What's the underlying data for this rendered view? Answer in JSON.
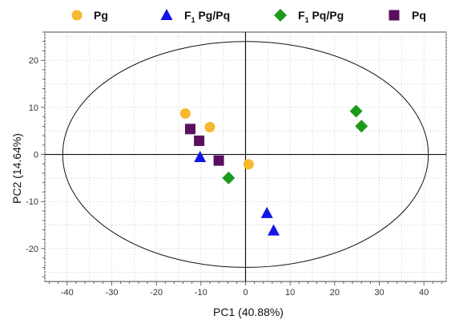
{
  "chart_data": {
    "type": "scatter",
    "xlabel": "PC1 (40.88%)",
    "ylabel": "PC2 (14.64%)",
    "xlim": [
      -45,
      45
    ],
    "ylim": [
      -27,
      26
    ],
    "xticks": [
      -40,
      -30,
      -20,
      -10,
      0,
      10,
      20,
      30,
      40
    ],
    "yticks": [
      -20,
      -10,
      0,
      10,
      20
    ],
    "grid": true,
    "legend_position": "top",
    "ellipse": {
      "center": [
        0,
        0
      ],
      "semi_x": 41,
      "semi_y": 24
    },
    "series": [
      {
        "name": "Pg",
        "marker": "circle",
        "color": "#F5B82E",
        "points": [
          [
            -13.5,
            8.7
          ],
          [
            -8,
            5.8
          ],
          [
            0.7,
            -2.1
          ]
        ]
      },
      {
        "name": "F1 Pg/Pq",
        "name_main": "F",
        "name_sub": "1",
        "name_rest": " Pg/Pq",
        "marker": "triangle",
        "color": "#1414E6",
        "points": [
          [
            -10.2,
            -0.6
          ],
          [
            4.8,
            -12.5
          ],
          [
            6.3,
            -16.2
          ]
        ]
      },
      {
        "name": "F1 Pq/Pg",
        "name_main": "F",
        "name_sub": "1",
        "name_rest": " Pq/Pg",
        "marker": "diamond",
        "color": "#1E9A1E",
        "points": [
          [
            -3.8,
            -5
          ],
          [
            24.8,
            9.2
          ],
          [
            26,
            6
          ]
        ]
      },
      {
        "name": "Pq",
        "marker": "square",
        "color": "#5A0F5F",
        "points": [
          [
            -12.4,
            5.4
          ],
          [
            -10.4,
            2.9
          ],
          [
            -6,
            -1.3
          ]
        ]
      }
    ]
  }
}
